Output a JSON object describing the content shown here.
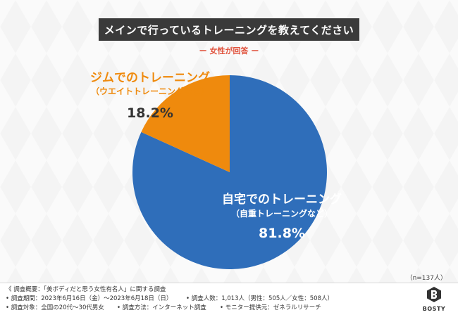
{
  "title": "メインで行っているトレーニングを教えてください",
  "subtitle": "ー 女性が回答 ー",
  "chart_data": {
    "type": "pie",
    "slices": [
      {
        "label": "自宅でのトレーニング",
        "sublabel": "（自重トレーニングなど）",
        "value": 81.8,
        "value_label": "81.8%",
        "color": "#2f6eba"
      },
      {
        "label": "ジムでのトレーニング",
        "sublabel": "（ウエイトトレーニングなど）",
        "value": 18.2,
        "value_label": "18.2%",
        "color": "#ef8a0d"
      }
    ]
  },
  "n_label": "（n=137人）",
  "footer": {
    "line1": "《 調査概要：「美ボディだと思う女性有名人」に関する調査",
    "period": "• 調査期間：2023年6月16日（金）〜2023年6月18日（日）",
    "count": "• 調査人数：1,013人（男性：505人／女性：508人）",
    "target": "• 調査対象：全国の20代〜30代男女",
    "method": "• 調査方法：インターネット調査",
    "provider": "• モニター提供元：ゼネラルリサーチ"
  },
  "logo": {
    "text": "BOSTY"
  }
}
